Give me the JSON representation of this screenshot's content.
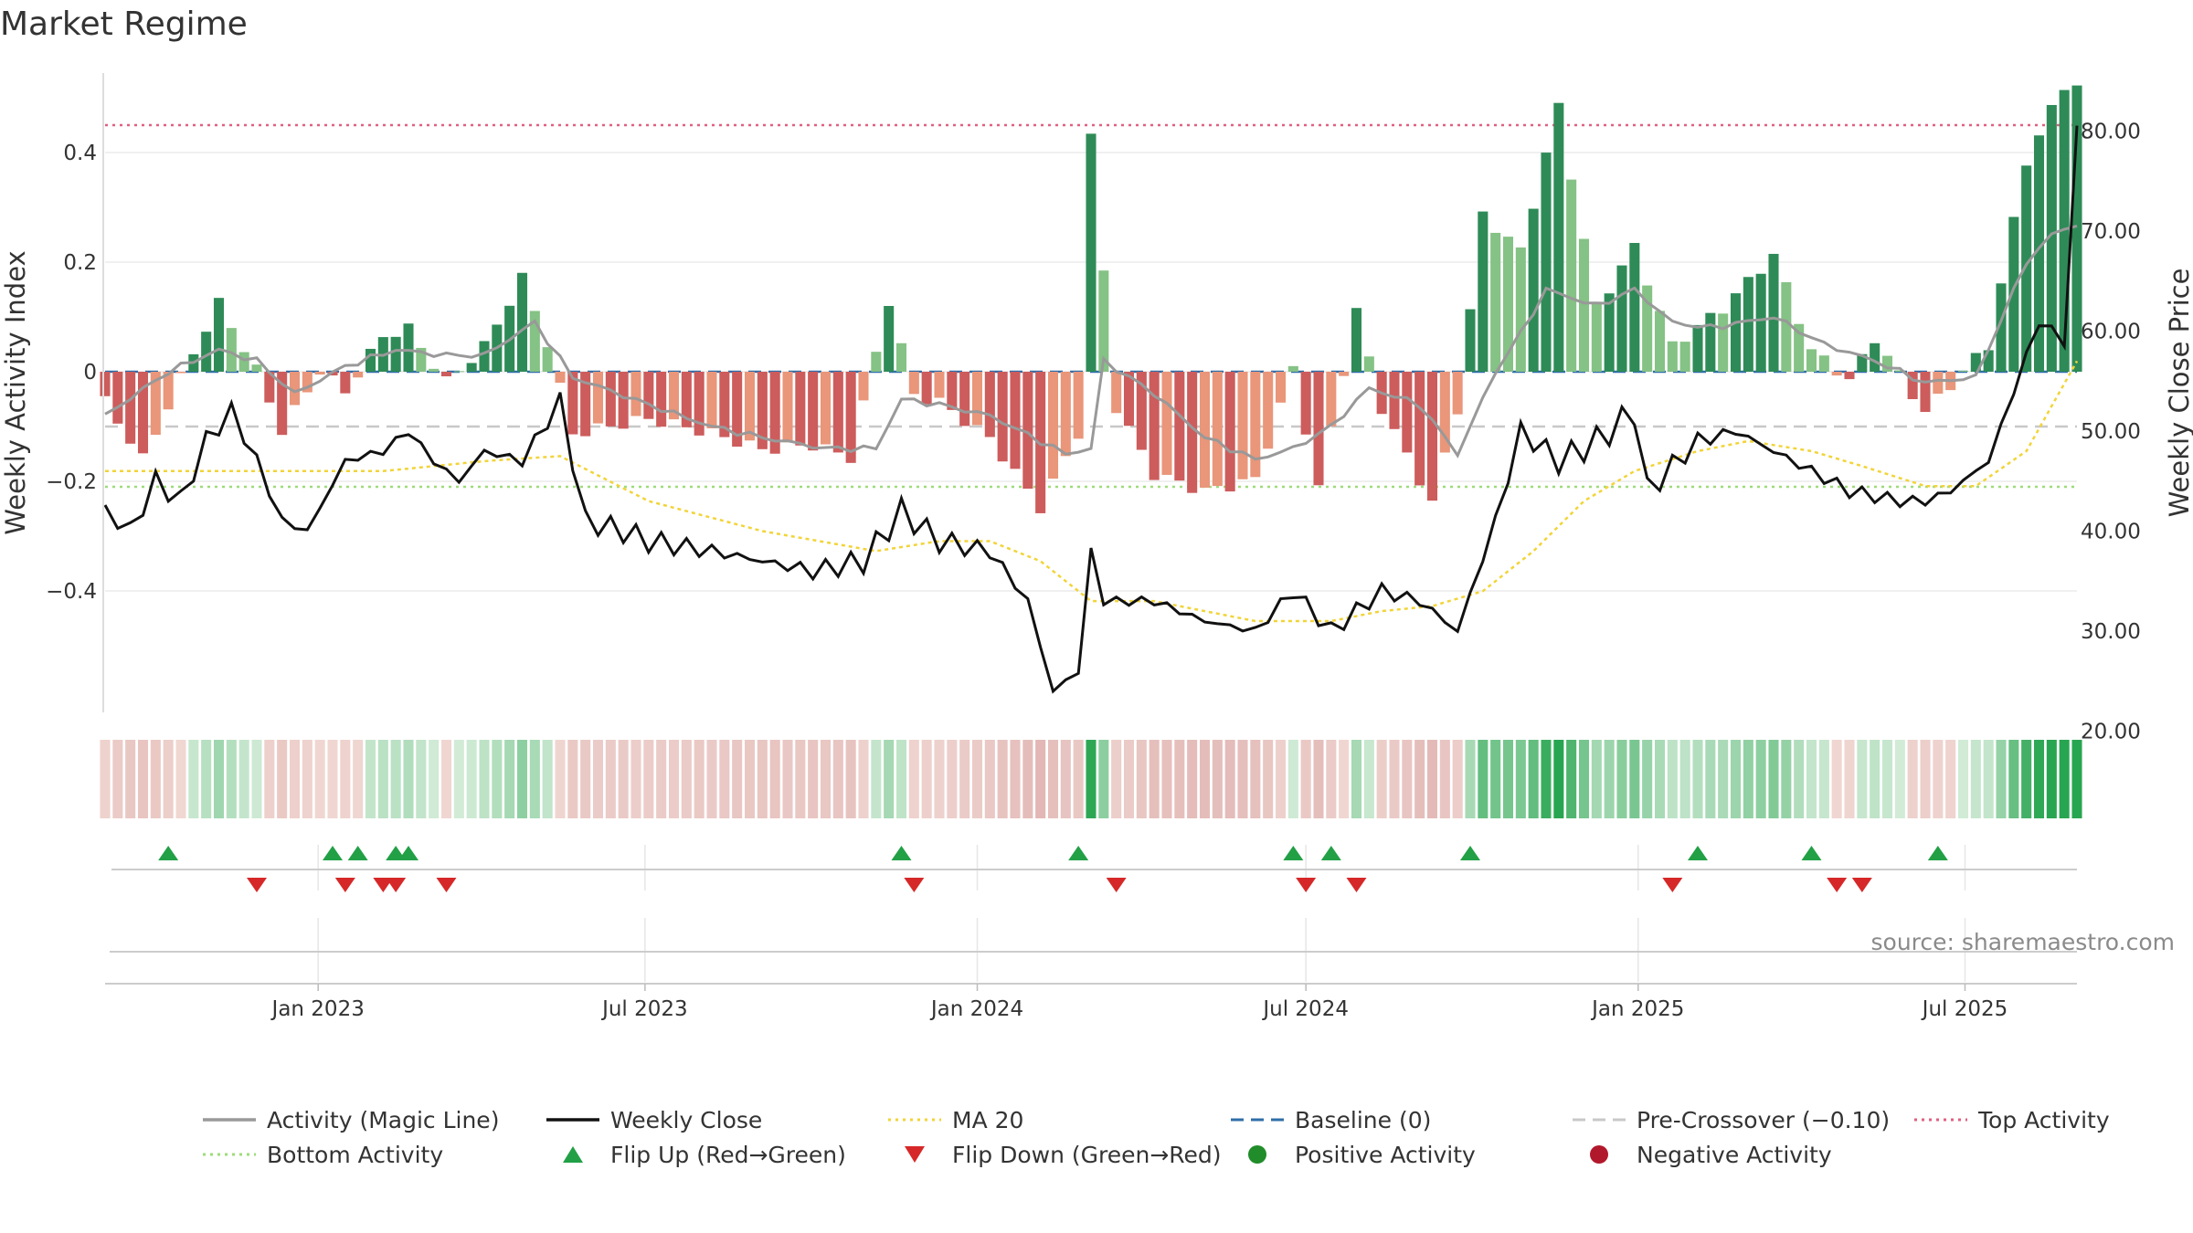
{
  "chart_data": {
    "type": "bar",
    "title": "Market Regime",
    "ylabel": "Weekly Activity Index",
    "ylabel_right": "Weekly Close Price",
    "source": "source: sharemaestro.com",
    "ylim": [
      -0.58,
      0.58
    ],
    "ylim_right": [
      20,
      82
    ],
    "yticks": [
      -0.4,
      -0.2,
      0,
      0.2,
      0.4
    ],
    "ytick_labels": [
      "−0.4",
      "−0.2",
      "0",
      "0.2",
      "0.4"
    ],
    "yticks_right": [
      20,
      30,
      40,
      50,
      60,
      70,
      80
    ],
    "ytick_right_labels": [
      "20.00",
      "30.00",
      "40.00",
      "50.00",
      "60.00",
      "70.00",
      "80.00"
    ],
    "x_start": "2022-09-05",
    "x_end": "2025-09-01",
    "xticks": [
      "2023-01-01",
      "2023-07-01",
      "2024-01-01",
      "2024-07-01",
      "2025-01-01",
      "2025-07-01"
    ],
    "xtick_labels": [
      "Jan 2023",
      "Jul 2023",
      "Jan 2024",
      "Jul 2024",
      "Jan 2025",
      "Jul 2025"
    ],
    "top_activity": 0.45,
    "bottom_activity": -0.21,
    "pre_crossover": -0.1,
    "baseline": 0,
    "anchors": {
      "activity": [
        [
          "2022-09-05",
          -0.05
        ],
        [
          "2022-09-26",
          -0.15
        ],
        [
          "2022-10-24",
          0.05
        ],
        [
          "2022-11-07",
          0.14
        ],
        [
          "2022-11-28",
          0.02
        ],
        [
          "2022-12-12",
          -0.09
        ],
        [
          "2023-01-02",
          0.02
        ],
        [
          "2023-01-16",
          -0.02
        ],
        [
          "2023-02-06",
          0.08
        ],
        [
          "2023-02-20",
          0.09
        ],
        [
          "2023-03-13",
          -0.01
        ],
        [
          "2023-04-03",
          0.05
        ],
        [
          "2023-04-24",
          0.17
        ],
        [
          "2023-05-08",
          0.05
        ],
        [
          "2023-05-22",
          -0.12
        ],
        [
          "2023-07-03",
          -0.1
        ],
        [
          "2023-08-07",
          -0.13
        ],
        [
          "2023-09-04",
          -0.16
        ],
        [
          "2023-10-02",
          -0.15
        ],
        [
          "2023-10-23",
          -0.17
        ],
        [
          "2023-11-13",
          0.12
        ],
        [
          "2023-11-27",
          -0.05
        ],
        [
          "2023-12-11",
          -0.06
        ],
        [
          "2024-01-08",
          -0.12
        ],
        [
          "2024-02-05",
          -0.24
        ],
        [
          "2024-02-26",
          -0.1
        ],
        [
          "2024-03-04",
          0.44
        ],
        [
          "2024-03-18",
          -0.05
        ],
        [
          "2024-04-08",
          -0.17
        ],
        [
          "2024-05-06",
          -0.2
        ],
        [
          "2024-06-03",
          -0.18
        ],
        [
          "2024-06-24",
          0.02
        ],
        [
          "2024-07-08",
          -0.2
        ],
        [
          "2024-07-29",
          0.12
        ],
        [
          "2024-08-12",
          -0.06
        ],
        [
          "2024-09-09",
          -0.24
        ],
        [
          "2024-09-23",
          -0.07
        ],
        [
          "2024-10-07",
          0.28
        ],
        [
          "2024-10-28",
          0.21
        ],
        [
          "2024-11-18",
          0.47
        ],
        [
          "2024-12-09",
          0.1
        ],
        [
          "2024-12-30",
          0.21
        ],
        [
          "2025-01-20",
          0.03
        ],
        [
          "2025-02-17",
          0.1
        ],
        [
          "2025-03-17",
          0.2
        ],
        [
          "2025-04-07",
          0.03
        ],
        [
          "2025-04-28",
          -0.02
        ],
        [
          "2025-05-12",
          0.06
        ],
        [
          "2025-06-09",
          -0.07
        ],
        [
          "2025-06-30",
          0.01
        ],
        [
          "2025-07-14",
          0.06
        ],
        [
          "2025-08-04",
          0.4
        ],
        [
          "2025-08-25",
          0.54
        ]
      ],
      "magic": [
        [
          "2022-09-05",
          -0.08
        ],
        [
          "2022-10-10",
          0.0
        ],
        [
          "2022-11-07",
          0.04
        ],
        [
          "2022-11-28",
          0.02
        ],
        [
          "2022-12-19",
          -0.04
        ],
        [
          "2023-01-16",
          0.01
        ],
        [
          "2023-02-13",
          0.04
        ],
        [
          "2023-03-13",
          0.03
        ],
        [
          "2023-04-03",
          0.03
        ],
        [
          "2023-05-01",
          0.09
        ],
        [
          "2023-05-22",
          -0.01
        ],
        [
          "2023-07-03",
          -0.06
        ],
        [
          "2023-08-07",
          -0.1
        ],
        [
          "2023-09-04",
          -0.12
        ],
        [
          "2023-10-09",
          -0.14
        ],
        [
          "2023-11-06",
          -0.14
        ],
        [
          "2023-11-20",
          -0.05
        ],
        [
          "2023-12-11",
          -0.06
        ],
        [
          "2024-01-08",
          -0.08
        ],
        [
          "2024-02-19",
          -0.15
        ],
        [
          "2024-03-04",
          -0.14
        ],
        [
          "2024-03-11",
          0.02
        ],
        [
          "2024-04-08",
          -0.04
        ],
        [
          "2024-05-06",
          -0.12
        ],
        [
          "2024-06-03",
          -0.16
        ],
        [
          "2024-06-24",
          -0.14
        ],
        [
          "2024-07-15",
          -0.1
        ],
        [
          "2024-08-05",
          -0.03
        ],
        [
          "2024-09-02",
          -0.06
        ],
        [
          "2024-09-23",
          -0.15
        ],
        [
          "2024-10-14",
          0.0
        ],
        [
          "2024-10-28",
          0.07
        ],
        [
          "2024-11-11",
          0.15
        ],
        [
          "2024-12-09",
          0.12
        ],
        [
          "2024-12-30",
          0.15
        ],
        [
          "2025-01-20",
          0.09
        ],
        [
          "2025-02-10",
          0.08
        ],
        [
          "2025-03-17",
          0.1
        ],
        [
          "2025-04-14",
          0.05
        ],
        [
          "2025-05-12",
          0.02
        ],
        [
          "2025-06-09",
          -0.02
        ],
        [
          "2025-07-07",
          -0.01
        ],
        [
          "2025-08-04",
          0.2
        ],
        [
          "2025-08-18",
          0.25
        ],
        [
          "2025-09-01",
          0.27
        ]
      ],
      "close": [
        [
          "2022-09-05",
          42.0
        ],
        [
          "2022-09-19",
          40.0
        ],
        [
          "2022-10-03",
          45.0
        ],
        [
          "2022-10-17",
          43.0
        ],
        [
          "2022-10-31",
          49.0
        ],
        [
          "2022-11-14",
          52.0
        ],
        [
          "2022-11-28",
          47.0
        ],
        [
          "2022-12-12",
          41.0
        ],
        [
          "2022-12-26",
          40.0
        ],
        [
          "2023-01-16",
          47.0
        ],
        [
          "2023-02-06",
          48.0
        ],
        [
          "2023-02-20",
          50.0
        ],
        [
          "2023-03-06",
          47.0
        ],
        [
          "2023-03-20",
          45.0
        ],
        [
          "2023-04-03",
          48.0
        ],
        [
          "2023-04-24",
          47.0
        ],
        [
          "2023-05-15",
          53.0
        ],
        [
          "2023-05-29",
          41.0
        ],
        [
          "2023-06-19",
          40.0
        ],
        [
          "2023-07-03",
          39.0
        ],
        [
          "2023-08-07",
          38.0
        ],
        [
          "2023-09-04",
          37.0
        ],
        [
          "2023-10-02",
          36.0
        ],
        [
          "2023-10-30",
          37.0
        ],
        [
          "2023-11-20",
          42.0
        ],
        [
          "2023-12-11",
          39.0
        ],
        [
          "2024-01-08",
          38.0
        ],
        [
          "2024-01-29",
          33.0
        ],
        [
          "2024-02-12",
          24.0
        ],
        [
          "2024-02-26",
          26.0
        ],
        [
          "2024-03-04",
          38.0
        ],
        [
          "2024-03-11",
          33.0
        ],
        [
          "2024-04-08",
          33.0
        ],
        [
          "2024-05-06",
          31.0
        ],
        [
          "2024-06-03",
          30.0
        ],
        [
          "2024-06-24",
          34.0
        ],
        [
          "2024-07-15",
          30.0
        ],
        [
          "2024-08-12",
          34.0
        ],
        [
          "2024-09-02",
          33.0
        ],
        [
          "2024-09-23",
          30.0
        ],
        [
          "2024-10-14",
          41.0
        ],
        [
          "2024-10-28",
          50.0
        ],
        [
          "2024-11-18",
          47.0
        ],
        [
          "2024-12-09",
          49.0
        ],
        [
          "2024-12-30",
          52.0
        ],
        [
          "2025-01-06",
          44.0
        ],
        [
          "2025-02-03",
          49.0
        ],
        [
          "2025-02-24",
          50.0
        ],
        [
          "2025-03-17",
          48.0
        ],
        [
          "2025-04-07",
          46.0
        ],
        [
          "2025-04-28",
          44.0
        ],
        [
          "2025-05-26",
          43.0
        ],
        [
          "2025-06-09",
          43.0
        ],
        [
          "2025-06-23",
          44.0
        ],
        [
          "2025-07-14",
          47.0
        ],
        [
          "2025-07-28",
          54.0
        ],
        [
          "2025-08-11",
          61.0
        ],
        [
          "2025-08-25",
          59.0
        ],
        [
          "2025-09-01",
          80.0
        ]
      ],
      "ma20": [
        [
          "2022-09-05",
          46.0
        ],
        [
          "2022-11-07",
          46.0
        ],
        [
          "2023-02-06",
          46.0
        ],
        [
          "2023-04-03",
          47.0
        ],
        [
          "2023-05-15",
          47.5
        ],
        [
          "2023-07-03",
          43.0
        ],
        [
          "2023-09-04",
          40.0
        ],
        [
          "2023-11-06",
          38.0
        ],
        [
          "2023-12-11",
          39.0
        ],
        [
          "2024-01-08",
          39.0
        ],
        [
          "2024-02-05",
          37.0
        ],
        [
          "2024-03-04",
          33.0
        ],
        [
          "2024-04-08",
          33.0
        ],
        [
          "2024-05-06",
          32.0
        ],
        [
          "2024-06-03",
          31.0
        ],
        [
          "2024-07-15",
          31.0
        ],
        [
          "2024-08-12",
          32.0
        ],
        [
          "2024-09-09",
          32.5
        ],
        [
          "2024-10-07",
          34.0
        ],
        [
          "2024-11-04",
          38.0
        ],
        [
          "2024-12-02",
          43.0
        ],
        [
          "2024-12-30",
          46.0
        ],
        [
          "2025-02-03",
          48.0
        ],
        [
          "2025-03-03",
          49.0
        ],
        [
          "2025-04-07",
          48.0
        ],
        [
          "2025-05-05",
          46.5
        ],
        [
          "2025-06-09",
          44.5
        ],
        [
          "2025-07-07",
          44.5
        ],
        [
          "2025-08-04",
          48.0
        ],
        [
          "2025-09-01",
          57.0
        ]
      ]
    },
    "flip_up": [
      "2022-10-10",
      "2023-01-09",
      "2023-01-23",
      "2023-02-13",
      "2023-02-20",
      "2023-11-20",
      "2024-02-26",
      "2024-06-24",
      "2024-07-15",
      "2024-09-30",
      "2025-02-03",
      "2025-04-07",
      "2025-06-16"
    ],
    "flip_down": [
      "2022-11-28",
      "2023-01-16",
      "2023-02-06",
      "2023-02-13",
      "2023-03-13",
      "2023-11-27",
      "2024-03-18",
      "2024-07-01",
      "2024-07-29",
      "2025-01-20",
      "2025-04-21",
      "2025-05-05"
    ],
    "legend": [
      {
        "label": "Activity (Magic Line)",
        "icon": "line",
        "color": "#999999"
      },
      {
        "label": "Weekly Close",
        "icon": "line",
        "color": "#111111"
      },
      {
        "label": "MA 20",
        "icon": "dotted",
        "color": "#f2d438"
      },
      {
        "label": "Baseline (0)",
        "icon": "dashed",
        "color": "#2f6ea8"
      },
      {
        "label": "Pre-Crossover (−0.10)",
        "icon": "dashed",
        "color": "#c8c8c8"
      },
      {
        "label": "Top Activity",
        "icon": "dotted",
        "color": "#e06080"
      },
      {
        "label": "Bottom Activity",
        "icon": "dotted",
        "color": "#9ddc7a"
      },
      {
        "label": "Flip Up (Red→Green)",
        "icon": "triangle-up",
        "color": "#22a046"
      },
      {
        "label": "Flip Down (Green→Red)",
        "icon": "triangle-down",
        "color": "#d62828"
      },
      {
        "label": "Positive Activity",
        "icon": "circle",
        "color": "#218c2a"
      },
      {
        "label": "Negative Activity",
        "icon": "circle",
        "color": "#b2182b"
      }
    ],
    "colors": {
      "pos_strong": "#2e8b57",
      "pos_light": "#85c285",
      "neg_strong": "#cd5c5c",
      "neg_light": "#e9967a",
      "close": "#111111",
      "magic": "#999999",
      "ma20": "#f2d438",
      "baseline": "#2f6ea8",
      "precross": "#c8c8c8",
      "top": "#e06080",
      "bottom": "#9ddc7a",
      "flip_up": "#22a046",
      "flip_down": "#d62828"
    }
  }
}
